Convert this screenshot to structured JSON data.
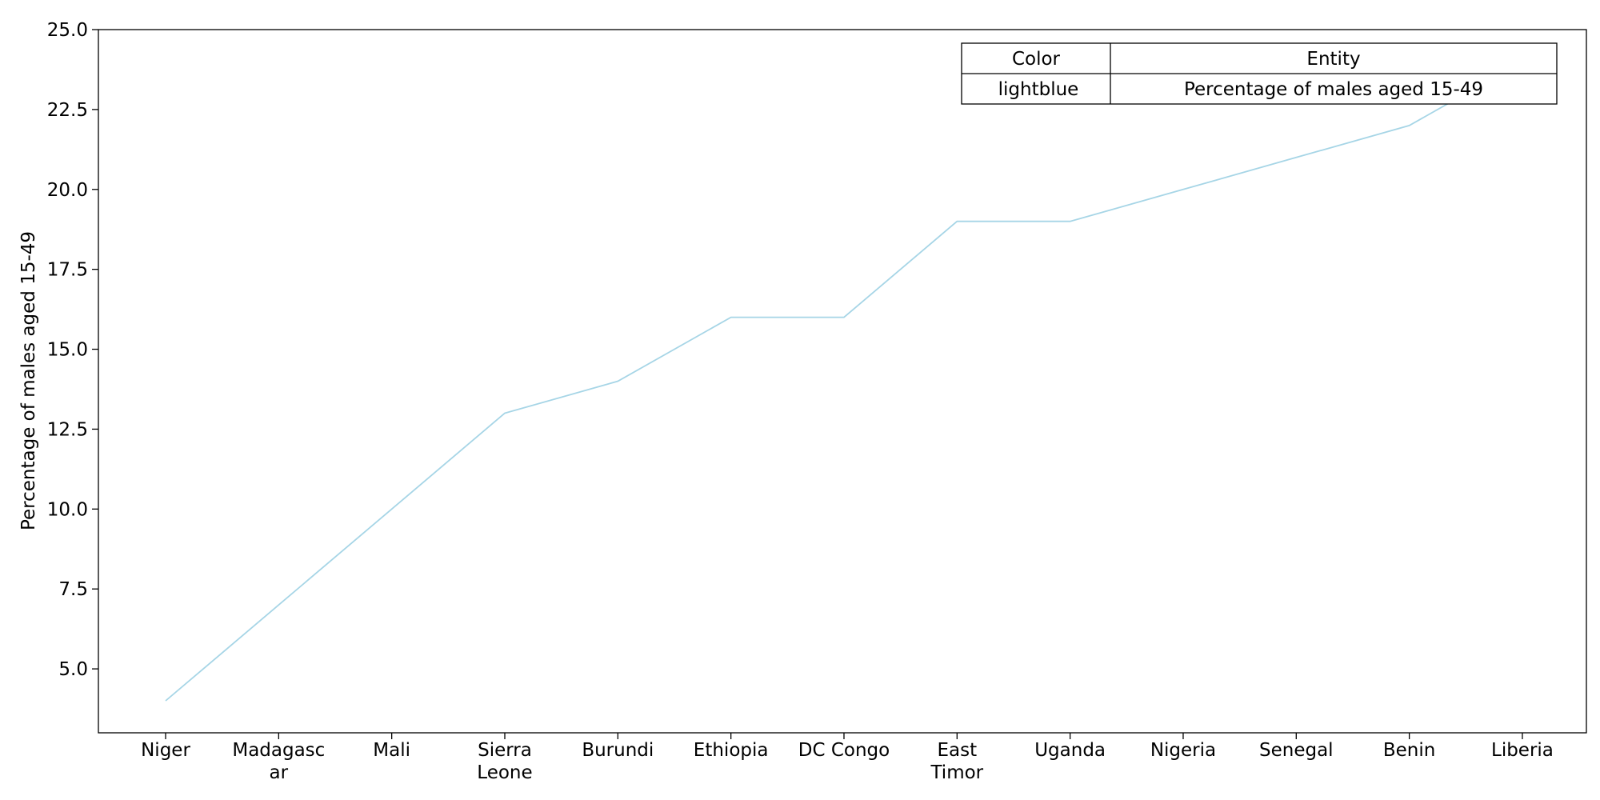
{
  "chart_data": {
    "type": "line",
    "title": "",
    "xlabel": "",
    "ylabel": "Percentage of males aged 15-49",
    "categories": [
      "Niger",
      "Madagascar",
      "Mali",
      "Sierra Leone",
      "Burundi",
      "Ethiopia",
      "DC Congo",
      "East Timor",
      "Uganda",
      "Nigeria",
      "Senegal",
      "Benin",
      "Liberia"
    ],
    "category_tick_lines": [
      [
        "Niger"
      ],
      [
        "Madagasc",
        "ar"
      ],
      [
        "Mali"
      ],
      [
        "Sierra",
        "Leone"
      ],
      [
        "Burundi"
      ],
      [
        "Ethiopia"
      ],
      [
        "DC Congo"
      ],
      [
        "East",
        "Timor"
      ],
      [
        "Uganda"
      ],
      [
        "Nigeria"
      ],
      [
        "Senegal"
      ],
      [
        "Benin"
      ],
      [
        "Liberia"
      ]
    ],
    "series": [
      {
        "values": [
          4,
          7,
          10,
          13,
          14,
          16,
          16,
          19,
          19,
          20,
          21,
          22,
          24
        ],
        "color": "#a6d5e6"
      }
    ],
    "ylim": [
      3,
      25
    ],
    "yticks": [
      5.0,
      7.5,
      10.0,
      12.5,
      15.0,
      17.5,
      20.0,
      22.5,
      25.0
    ],
    "ytick_labels": [
      "5.0",
      "7.5",
      "10.0",
      "12.5",
      "15.0",
      "17.5",
      "20.0",
      "22.5",
      "25.0"
    ],
    "grid": false,
    "legend_table": {
      "placement": "top-right",
      "headers": [
        "Color",
        "Entity"
      ],
      "rows": [
        [
          "lightblue",
          "Percentage of males aged 15-49"
        ]
      ]
    }
  }
}
